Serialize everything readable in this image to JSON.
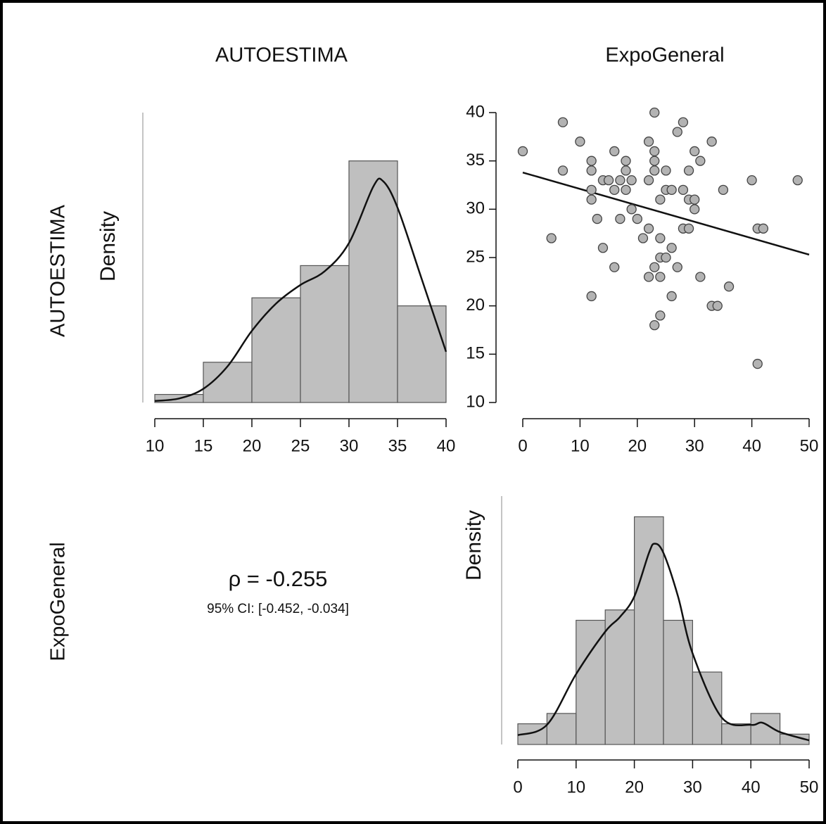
{
  "headers": {
    "columns": [
      "AUTOESTIMA",
      "ExpoGeneral"
    ],
    "rows": [
      "AUTOESTIMA",
      "ExpoGeneral"
    ]
  },
  "correlation": {
    "rho_label": "ρ = -0.255",
    "ci_label": "95% CI: [-0.452, -0.034]"
  },
  "chart_data": [
    {
      "type": "histogram",
      "ylabel": "Density",
      "bins": [
        10,
        15,
        20,
        25,
        30,
        35,
        40
      ],
      "values": [
        1,
        5,
        13,
        17,
        30,
        12
      ],
      "color": "#bfbfbf",
      "xlim": [
        10,
        40
      ],
      "xticks": [
        10,
        15,
        20,
        25,
        30,
        35,
        40
      ],
      "ylim": [
        0,
        36
      ],
      "density": {
        "x": [
          10,
          12.5,
          15,
          17.5,
          20,
          22.5,
          25,
          27.5,
          30,
          32.5,
          33.5,
          35,
          37.5,
          40
        ],
        "values": [
          0.2,
          0.5,
          1.7,
          4.5,
          8.9,
          12.3,
          14.6,
          16.3,
          19.8,
          26.8,
          27.5,
          24.2,
          15.3,
          6.3
        ]
      }
    },
    {
      "type": "scatter",
      "color": "#b3b3b3",
      "xlim": [
        0,
        50
      ],
      "xticks": [
        0,
        10,
        20,
        30,
        40,
        50
      ],
      "ylim": [
        10,
        40
      ],
      "yticks": [
        10,
        15,
        20,
        25,
        30,
        35,
        40
      ],
      "x": [
        0,
        7,
        7,
        10,
        12,
        12,
        12,
        12,
        13,
        14,
        14,
        15,
        16,
        16,
        16,
        17,
        17,
        18,
        18,
        18,
        19,
        19,
        20,
        21,
        22,
        22,
        22,
        22,
        23,
        23,
        23,
        23,
        23,
        23,
        24,
        24,
        24,
        24,
        24,
        25,
        25,
        25,
        26,
        26,
        26,
        27,
        27,
        28,
        28,
        28,
        29,
        29,
        29,
        30,
        30,
        30,
        31,
        31,
        33,
        33,
        34,
        35,
        36,
        40,
        41,
        42,
        41,
        48,
        5,
        12
      ],
      "values": [
        36,
        39,
        34,
        37,
        35,
        34,
        32,
        31,
        29,
        26,
        33,
        33,
        36,
        32,
        24,
        33,
        29,
        35,
        34,
        32,
        33,
        30,
        29,
        27,
        28,
        33,
        37,
        23,
        40,
        36,
        35,
        34,
        24,
        18,
        25,
        23,
        27,
        19,
        31,
        34,
        32,
        25,
        32,
        26,
        21,
        38,
        24,
        39,
        32,
        28,
        34,
        31,
        28,
        36,
        31,
        30,
        35,
        23,
        37,
        20,
        20,
        32,
        22,
        33,
        28,
        28,
        14,
        33,
        27,
        21
      ],
      "fit": {
        "x": [
          0,
          50
        ],
        "values": [
          33.8,
          25.3
        ]
      }
    },
    {
      "type": "histogram",
      "ylabel": "Density",
      "bins": [
        0,
        5,
        10,
        15,
        20,
        25,
        30,
        35,
        40,
        45,
        50
      ],
      "values": [
        2,
        3,
        12,
        13,
        22,
        12,
        7,
        2,
        3,
        1
      ],
      "color": "#bfbfbf",
      "xlim": [
        0,
        50
      ],
      "xticks": [
        0,
        10,
        20,
        30,
        40,
        50
      ],
      "ylim": [
        0,
        24
      ],
      "density": {
        "x": [
          0,
          5,
          10,
          15,
          17.5,
          20,
          22.5,
          23.5,
          25,
          27.5,
          30,
          35,
          40,
          42,
          45,
          50
        ],
        "values": [
          0.9,
          1.9,
          6.8,
          10.9,
          12.3,
          14.3,
          18.5,
          19.4,
          18.5,
          14.3,
          8.8,
          2.6,
          1.9,
          2.1,
          1.2,
          0.4
        ]
      }
    }
  ]
}
